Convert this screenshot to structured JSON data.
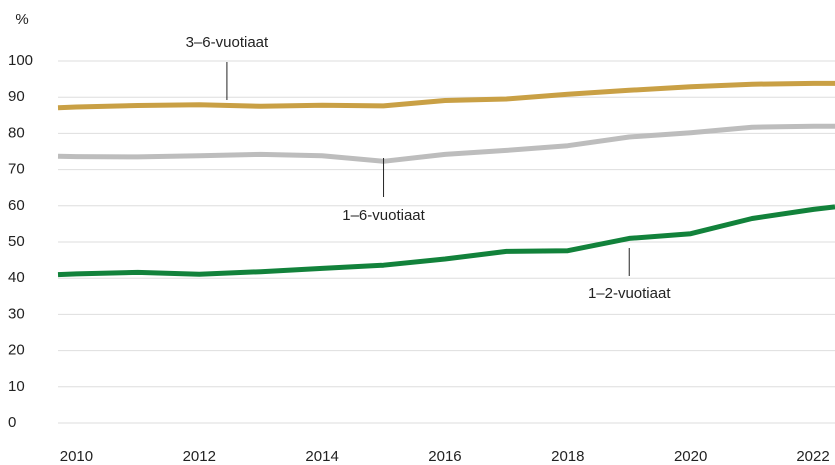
{
  "chart_data": {
    "type": "line",
    "y_label": "%",
    "x": [
      2009.7,
      2010,
      2011,
      2012,
      2013,
      2014,
      2015,
      2016,
      2017,
      2018,
      2019,
      2020,
      2021,
      2022,
      2022.35
    ],
    "series": [
      {
        "name": "3–6-vuotiaat",
        "color": "#c9a045",
        "values": [
          87.1,
          87.3,
          87.7,
          87.9,
          87.5,
          87.8,
          87.6,
          89.1,
          89.5,
          90.8,
          91.9,
          92.9,
          93.6,
          93.8,
          93.8
        ]
      },
      {
        "name": "1–6-vuotiaat",
        "color": "#bdbdbd",
        "values": [
          73.7,
          73.6,
          73.5,
          73.8,
          74.2,
          73.8,
          72.3,
          74.2,
          75.3,
          76.6,
          79,
          80.2,
          81.7,
          82,
          82
        ]
      },
      {
        "name": "1–2-vuotiaat",
        "color": "#12823b",
        "values": [
          41,
          41.2,
          41.6,
          41.1,
          41.8,
          42.7,
          43.6,
          45.3,
          47.4,
          47.6,
          51,
          52.3,
          56.5,
          59,
          59.7
        ]
      }
    ],
    "xlim": [
      2009.7,
      2022.35
    ],
    "xticks": [
      2010,
      2012,
      2014,
      2016,
      2018,
      2020,
      2022
    ],
    "ylim": [
      0,
      100
    ],
    "yticks": [
      0,
      10,
      20,
      30,
      40,
      50,
      60,
      70,
      80,
      90,
      100
    ],
    "grid": true
  }
}
